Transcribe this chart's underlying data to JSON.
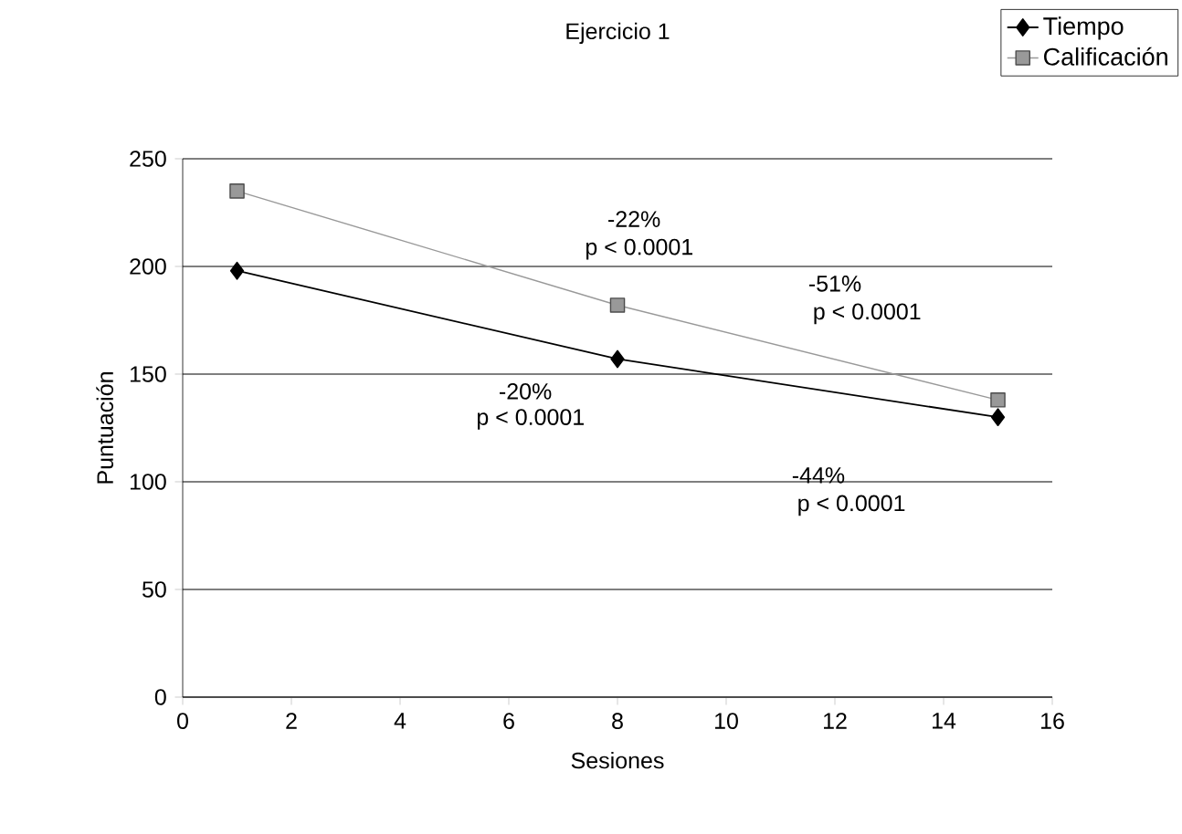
{
  "chart_data": {
    "type": "line",
    "title": "Ejercicio 1",
    "xlabel": "Sesiones",
    "ylabel": "Puntuación",
    "x": [
      1,
      8,
      15
    ],
    "series": [
      {
        "name": "Tiempo",
        "color": "#000000",
        "values": [
          198,
          157,
          130
        ],
        "marker": "diamond"
      },
      {
        "name": "Calificación",
        "color": "#999999",
        "values": [
          235,
          182,
          138
        ],
        "marker": "square"
      }
    ],
    "xlim": [
      0,
      16
    ],
    "xticks": [
      0,
      2,
      4,
      6,
      8,
      10,
      12,
      14,
      16
    ],
    "ylim": [
      0,
      250
    ],
    "yticks": [
      0,
      50,
      100,
      150,
      200,
      250
    ],
    "grid": "y",
    "legend": "top right",
    "annotations": [
      "-22%",
      "p < 0.0001",
      "-51%",
      "p < 0.0001",
      "-20%",
      "p < 0.0001",
      "-44%",
      "p < 0.0001"
    ]
  }
}
